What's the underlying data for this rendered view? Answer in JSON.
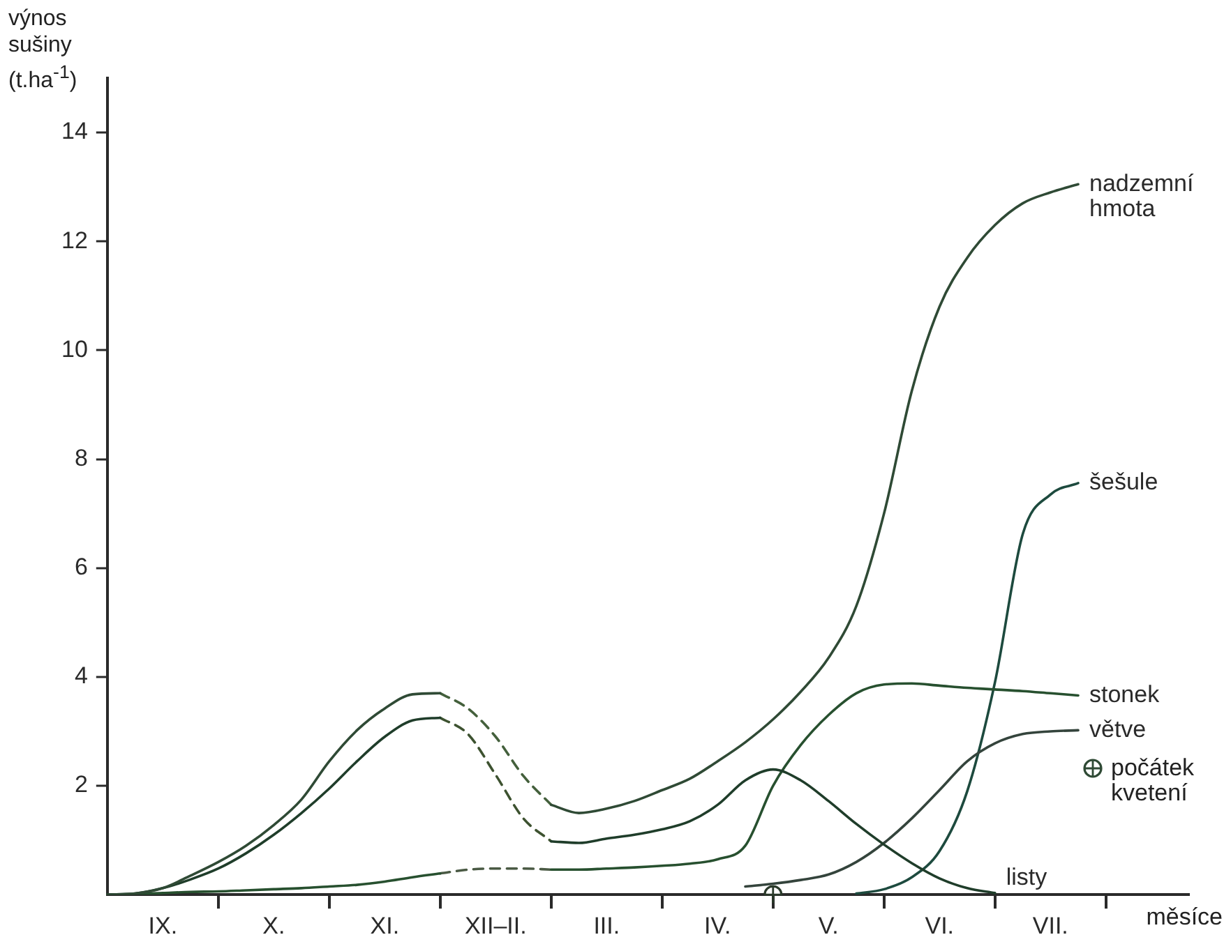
{
  "chart_data": {
    "type": "line",
    "ylabel": "výnos sušiny (t.ha$^{-1}$)",
    "xlabel": "měsíce",
    "categories": [
      null,
      null,
      "IX.",
      null,
      null,
      null,
      "X.",
      null,
      null,
      null,
      "XI.",
      null,
      null,
      null,
      "XII–II.",
      null,
      null,
      null,
      "III.",
      null,
      null,
      null,
      "IV.",
      null,
      null,
      null,
      "V.",
      null,
      null,
      null,
      "VI.",
      null,
      null,
      null,
      "VII.",
      null,
      null,
      null,
      null,
      null
    ],
    "ylim": [
      0,
      15
    ],
    "yticks": [
      2,
      4,
      6,
      8,
      10,
      12,
      14
    ],
    "grid": false,
    "legend": "right",
    "marker": "none",
    "series": [
      {
        "name": "nadzemní hmota",
        "color": "#2f4a35",
        "line_style": "solid",
        "values": [
          0,
          0.02,
          0.12,
          0.35,
          0.6,
          0.9,
          1.28,
          1.75,
          2.45,
          3.02,
          3.42,
          3.68,
          3.7,
          null,
          null,
          null,
          1.65,
          1.5,
          1.58,
          1.72,
          1.92,
          2.13,
          2.45,
          2.8,
          3.22,
          3.73,
          4.35,
          5.3,
          7.0,
          9.25,
          10.8,
          11.7,
          12.3,
          12.7,
          12.9,
          13.05,
          null,
          null,
          null,
          null
        ]
      },
      {
        "color": "#44603c",
        "line_style": "dashed",
        "values": [
          null,
          null,
          null,
          null,
          null,
          null,
          null,
          null,
          null,
          null,
          null,
          null,
          3.7,
          3.42,
          2.9,
          2.18,
          1.65,
          null,
          null,
          null,
          null,
          null,
          null,
          null,
          null,
          null,
          null,
          null,
          null,
          null,
          null,
          null,
          null,
          null,
          null,
          null,
          null,
          null,
          null,
          null
        ]
      },
      {
        "name": "listy",
        "color": "#1f3d2a",
        "line_style": "solid",
        "values": [
          0,
          0.02,
          0.12,
          0.28,
          0.48,
          0.76,
          1.1,
          1.5,
          1.95,
          2.45,
          2.9,
          3.2,
          3.25,
          null,
          null,
          null,
          0.98,
          0.95,
          1.03,
          1.1,
          1.2,
          1.35,
          1.65,
          2.1,
          2.3,
          2.1,
          1.72,
          1.3,
          0.92,
          0.58,
          0.3,
          0.12,
          0.03,
          null,
          null,
          null,
          null,
          null,
          null,
          null
        ]
      },
      {
        "color": "#3d5230",
        "line_style": "dashed",
        "values": [
          null,
          null,
          null,
          null,
          null,
          null,
          null,
          null,
          null,
          null,
          null,
          null,
          3.25,
          2.95,
          2.2,
          1.4,
          0.98,
          null,
          null,
          null,
          null,
          null,
          null,
          null,
          null,
          null,
          null,
          null,
          null,
          null,
          null,
          null,
          null,
          null,
          null,
          null,
          null,
          null,
          null,
          null
        ]
      },
      {
        "name": "stonek",
        "color": "#27502f",
        "line_style": "solid",
        "values": [
          0,
          0.01,
          0.03,
          0.05,
          0.06,
          0.08,
          0.1,
          0.12,
          0.15,
          0.18,
          0.24,
          0.32,
          0.39,
          null,
          null,
          null,
          0.46,
          0.46,
          0.48,
          0.5,
          0.53,
          0.57,
          0.65,
          0.9,
          2.0,
          2.75,
          3.3,
          3.7,
          3.86,
          3.88,
          3.84,
          3.8,
          3.77,
          3.74,
          3.7,
          3.66,
          null,
          null,
          null,
          null
        ]
      },
      {
        "color": "#4a5a44",
        "line_style": "dashed",
        "values": [
          null,
          null,
          null,
          null,
          null,
          null,
          null,
          null,
          null,
          null,
          null,
          null,
          0.39,
          0.46,
          0.48,
          0.48,
          0.46,
          null,
          null,
          null,
          null,
          null,
          null,
          null,
          null,
          null,
          null,
          null,
          null,
          null,
          null,
          null,
          null,
          null,
          null,
          null,
          null,
          null,
          null,
          null
        ]
      },
      {
        "name": "větve",
        "color": "#34443c",
        "line_style": "solid",
        "values": [
          null,
          null,
          null,
          null,
          null,
          null,
          null,
          null,
          null,
          null,
          null,
          null,
          null,
          null,
          null,
          null,
          null,
          null,
          null,
          null,
          null,
          null,
          null,
          0.15,
          0.2,
          0.27,
          0.37,
          0.6,
          0.95,
          1.4,
          1.92,
          2.45,
          2.78,
          2.95,
          3.0,
          3.02,
          null,
          null,
          null,
          null
        ]
      },
      {
        "name": "šešule",
        "color": "#1d4a3e",
        "line_style": "solid",
        "values": [
          null,
          null,
          null,
          null,
          null,
          null,
          null,
          null,
          null,
          null,
          null,
          null,
          null,
          null,
          null,
          null,
          null,
          null,
          null,
          null,
          null,
          null,
          null,
          null,
          null,
          null,
          null,
          0.02,
          0.1,
          0.32,
          0.8,
          1.9,
          3.9,
          6.62,
          7.35,
          7.56,
          null,
          null,
          null,
          null
        ]
      },
      {
        "name": "počátek kvetení",
        "type": "scatter",
        "marker": "circle",
        "color": "#2a3a2a",
        "values": [
          null,
          null,
          null,
          null,
          null,
          null,
          null,
          null,
          null,
          null,
          null,
          null,
          null,
          null,
          null,
          null,
          null,
          null,
          null,
          null,
          null,
          null,
          null,
          null,
          0,
          null,
          null,
          null,
          null,
          null,
          null,
          null,
          null,
          null,
          null,
          null,
          null,
          null,
          null,
          null
        ]
      }
    ]
  }
}
